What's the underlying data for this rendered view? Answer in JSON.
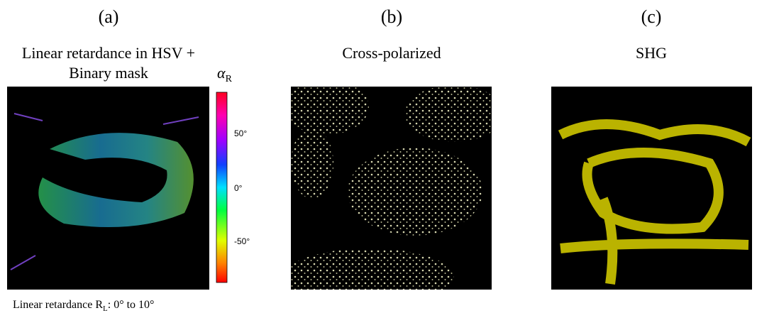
{
  "panels": [
    {
      "label": "(a)",
      "title_lines": [
        "Linear retardance in HSV +",
        "Binary mask"
      ]
    },
    {
      "label": "(b)",
      "title_lines": [
        "Cross-polarized"
      ]
    },
    {
      "label": "(c)",
      "title_lines": [
        "SHG"
      ]
    }
  ],
  "colorbar": {
    "symbol": "α",
    "symbol_subscript": "R",
    "ticks": [
      "50°",
      "0°",
      "-50°"
    ]
  },
  "caption": {
    "prefix": "Linear retardance R",
    "subscript": "L",
    "suffix": ": 0° to 10°"
  }
}
